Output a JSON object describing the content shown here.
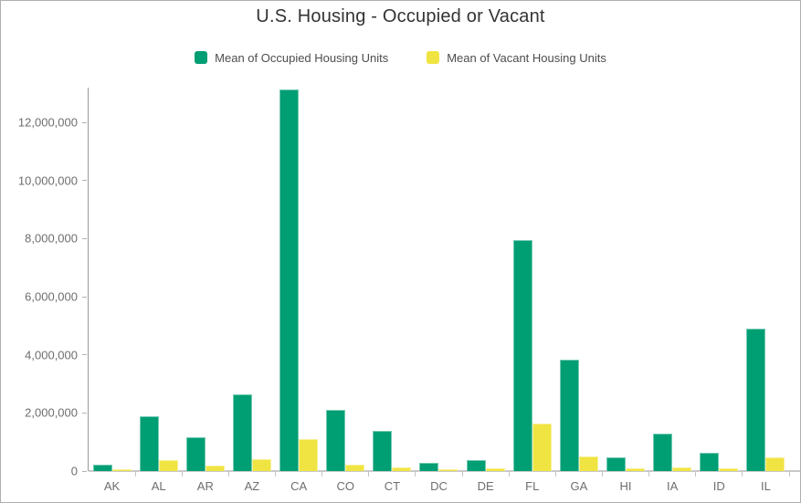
{
  "title": "U.S. Housing - Occupied or Vacant",
  "legend": {
    "items": [
      {
        "label": "Mean of Occupied Housing Units",
        "color": "#009E73"
      },
      {
        "label": "Mean of Vacant Housing Units",
        "color": "#F0E442"
      }
    ]
  },
  "chart_data": {
    "type": "bar",
    "title": "U.S. Housing - Occupied or Vacant",
    "categories": [
      "AK",
      "AL",
      "AR",
      "AZ",
      "CA",
      "CO",
      "CT",
      "DC",
      "DE",
      "FL",
      "GA",
      "HI",
      "IA",
      "ID",
      "IL"
    ],
    "series": [
      {
        "name": "Mean of Occupied Housing Units",
        "color": "#009E73",
        "values": [
          230000,
          1880000,
          1160000,
          2640000,
          13130000,
          2110000,
          1380000,
          300000,
          370000,
          7950000,
          3830000,
          470000,
          1290000,
          630000,
          4900000
        ]
      },
      {
        "name": "Mean of Vacant Housing Units",
        "color": "#F0E442",
        "values": [
          80000,
          380000,
          190000,
          410000,
          1100000,
          220000,
          140000,
          50000,
          110000,
          1630000,
          500000,
          90000,
          130000,
          100000,
          470000
        ]
      }
    ],
    "xlabel": "",
    "ylabel": "",
    "ylim": [
      0,
      13200000
    ],
    "yticks": [
      0,
      2000000,
      4000000,
      6000000,
      8000000,
      10000000,
      12000000
    ],
    "ytick_labels": [
      "0",
      "2,000,000",
      "4,000,000",
      "6,000,000",
      "8,000,000",
      "10,000,000",
      "12,000,000"
    ],
    "grid": false,
    "legend_position": "top"
  }
}
